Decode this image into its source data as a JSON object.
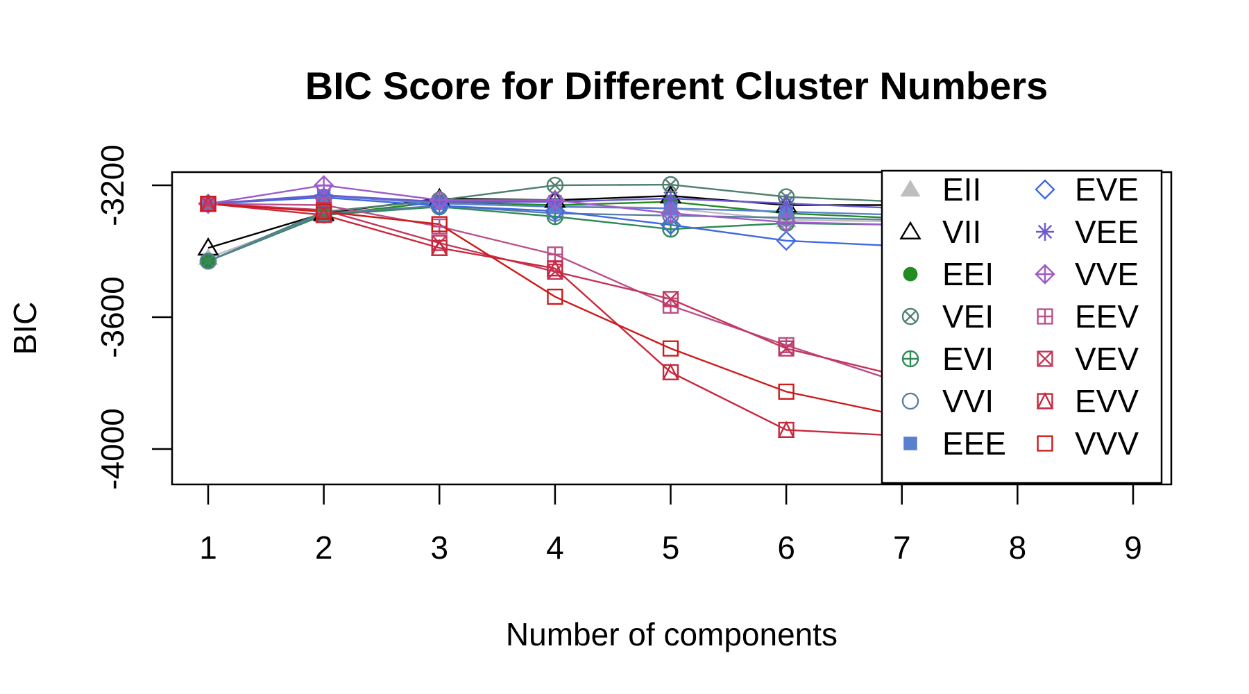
{
  "chart_data": {
    "type": "line",
    "title": "BIC Score for Different Cluster Numbers",
    "xlabel": "Number of components",
    "ylabel": "BIC",
    "x": [
      1,
      2,
      3,
      4,
      5,
      6,
      7,
      8,
      9
    ],
    "xlim": [
      1,
      9
    ],
    "ylim": [
      -4000,
      -3200
    ],
    "yticks": [
      -3200,
      -3600,
      -4000
    ],
    "grid": false,
    "legend": "top-right",
    "series": [
      {
        "name": "EII",
        "color": "#bebebe",
        "marker": "triangle-filled",
        "values": [
          -3420,
          -3290,
          -3250,
          -3260,
          -3270,
          -3305,
          -3310,
          -3300,
          -3300
        ]
      },
      {
        "name": "VII",
        "color": "#000000",
        "marker": "triangle-open",
        "values": [
          -3390,
          -3285,
          -3240,
          -3245,
          -3232,
          -3260,
          -3260,
          -3250,
          -3250
        ]
      },
      {
        "name": "EEI",
        "color": "#228b22",
        "marker": "circle-filled",
        "values": [
          -3430,
          -3290,
          -3250,
          -3260,
          -3250,
          -3285,
          -3300,
          -3300,
          -3300
        ]
      },
      {
        "name": "VEI",
        "color": "#4f7f6f",
        "marker": "circle-x",
        "values": [
          -3430,
          -3280,
          -3245,
          -3200,
          -3198,
          -3235,
          -3250,
          -3255,
          -3260
        ]
      },
      {
        "name": "EVI",
        "color": "#2e8b57",
        "marker": "circle-plus",
        "values": [
          -3430,
          -3290,
          -3265,
          -3295,
          -3333,
          -3315,
          -3320,
          -3325,
          -3330
        ]
      },
      {
        "name": "VVI",
        "color": "#5a7f9f",
        "marker": "circle-open",
        "values": [
          -3430,
          -3285,
          -3262,
          -3285,
          -3292,
          -3298,
          -3305,
          -3310,
          -3310
        ]
      },
      {
        "name": "EEE",
        "color": "#5a7fcf",
        "marker": "square-filled",
        "values": [
          -3256,
          -3232,
          -3255,
          -3265,
          -3270,
          -3280,
          -3290,
          -3290,
          -3290
        ]
      },
      {
        "name": "EVE",
        "color": "#4169e1",
        "marker": "diamond-open",
        "values": [
          -3256,
          -3237,
          -3262,
          -3278,
          -3320,
          -3368,
          -3385,
          -3395,
          -3400
        ]
      },
      {
        "name": "VEE",
        "color": "#6a5acd",
        "marker": "asterisk",
        "values": [
          -3256,
          -3230,
          -3250,
          -3250,
          -3240,
          -3255,
          -3270,
          -3280,
          -3285
        ]
      },
      {
        "name": "VVE",
        "color": "#9d5cc8",
        "marker": "diamond-plus",
        "values": [
          -3256,
          -3200,
          -3245,
          -3245,
          -3285,
          -3312,
          -3320,
          -3320,
          -3325
        ]
      },
      {
        "name": "EEV",
        "color": "#b8508a",
        "marker": "square-plus",
        "values": [
          -3256,
          -3260,
          -3325,
          -3410,
          -3565,
          -3685,
          -3800,
          -3830,
          -3840
        ]
      },
      {
        "name": "VEV",
        "color": "#c4365a",
        "marker": "square-x",
        "values": [
          -3256,
          -3275,
          -3375,
          -3462,
          -3545,
          -3695,
          -3780,
          -3800,
          -3810
        ]
      },
      {
        "name": "EVV",
        "color": "#c8283c",
        "marker": "triangle-square",
        "values": [
          -3256,
          -3290,
          -3390,
          -3452,
          -3767,
          -3942,
          -3960,
          -3970,
          -3980
        ]
      },
      {
        "name": "VVV",
        "color": "#cd1a1a",
        "marker": "square-open",
        "values": [
          -3256,
          -3280,
          -3318,
          -3538,
          -3695,
          -3826,
          -3900,
          -3920,
          -3930
        ]
      }
    ]
  }
}
